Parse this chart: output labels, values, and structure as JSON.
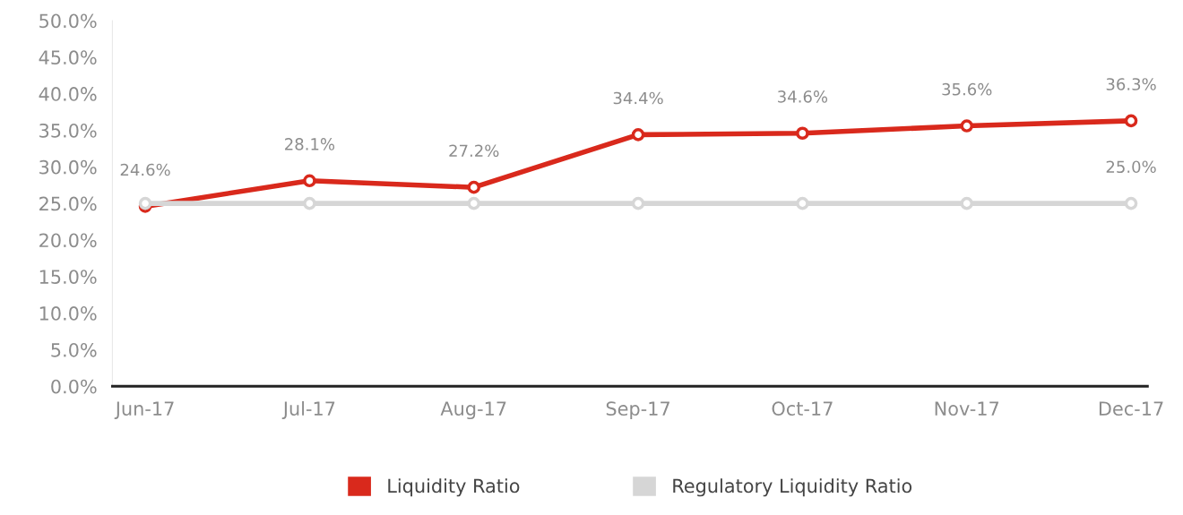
{
  "chart_data": {
    "type": "line",
    "categories": [
      "Jun-17",
      "Jul-17",
      "Aug-17",
      "Sep-17",
      "Oct-17",
      "Nov-17",
      "Dec-17"
    ],
    "series": [
      {
        "name": "Liquidity Ratio",
        "color": "#d9291c",
        "values": [
          24.6,
          28.1,
          27.2,
          34.4,
          34.6,
          35.6,
          36.3
        ],
        "value_labels": [
          "24.6%",
          "28.1%",
          "27.2%",
          "34.4%",
          "34.6%",
          "35.6%",
          "36.3%"
        ]
      },
      {
        "name": "Regulatory Liquidity Ratio",
        "color": "#d6d6d6",
        "values": [
          25.0,
          25.0,
          25.0,
          25.0,
          25.0,
          25.0,
          25.0
        ],
        "value_labels": [
          null,
          null,
          null,
          null,
          null,
          null,
          "25.0%"
        ]
      }
    ],
    "ylim": [
      0,
      50
    ],
    "yticks": [
      {
        "value": 0,
        "label": "0.0%"
      },
      {
        "value": 5,
        "label": "5.0%"
      },
      {
        "value": 10,
        "label": "10.0%"
      },
      {
        "value": 15,
        "label": "15.0%"
      },
      {
        "value": 20,
        "label": "20.0%"
      },
      {
        "value": 25,
        "label": "25.0%"
      },
      {
        "value": 30,
        "label": "30.0%"
      },
      {
        "value": 35,
        "label": "35.0%"
      },
      {
        "value": 40,
        "label": "40.0%"
      },
      {
        "value": 45,
        "label": "45.0%"
      },
      {
        "value": 50,
        "label": "50.0%"
      }
    ],
    "grid": false,
    "legend": "bottom",
    "marker": "circle",
    "line_style": "solid"
  }
}
